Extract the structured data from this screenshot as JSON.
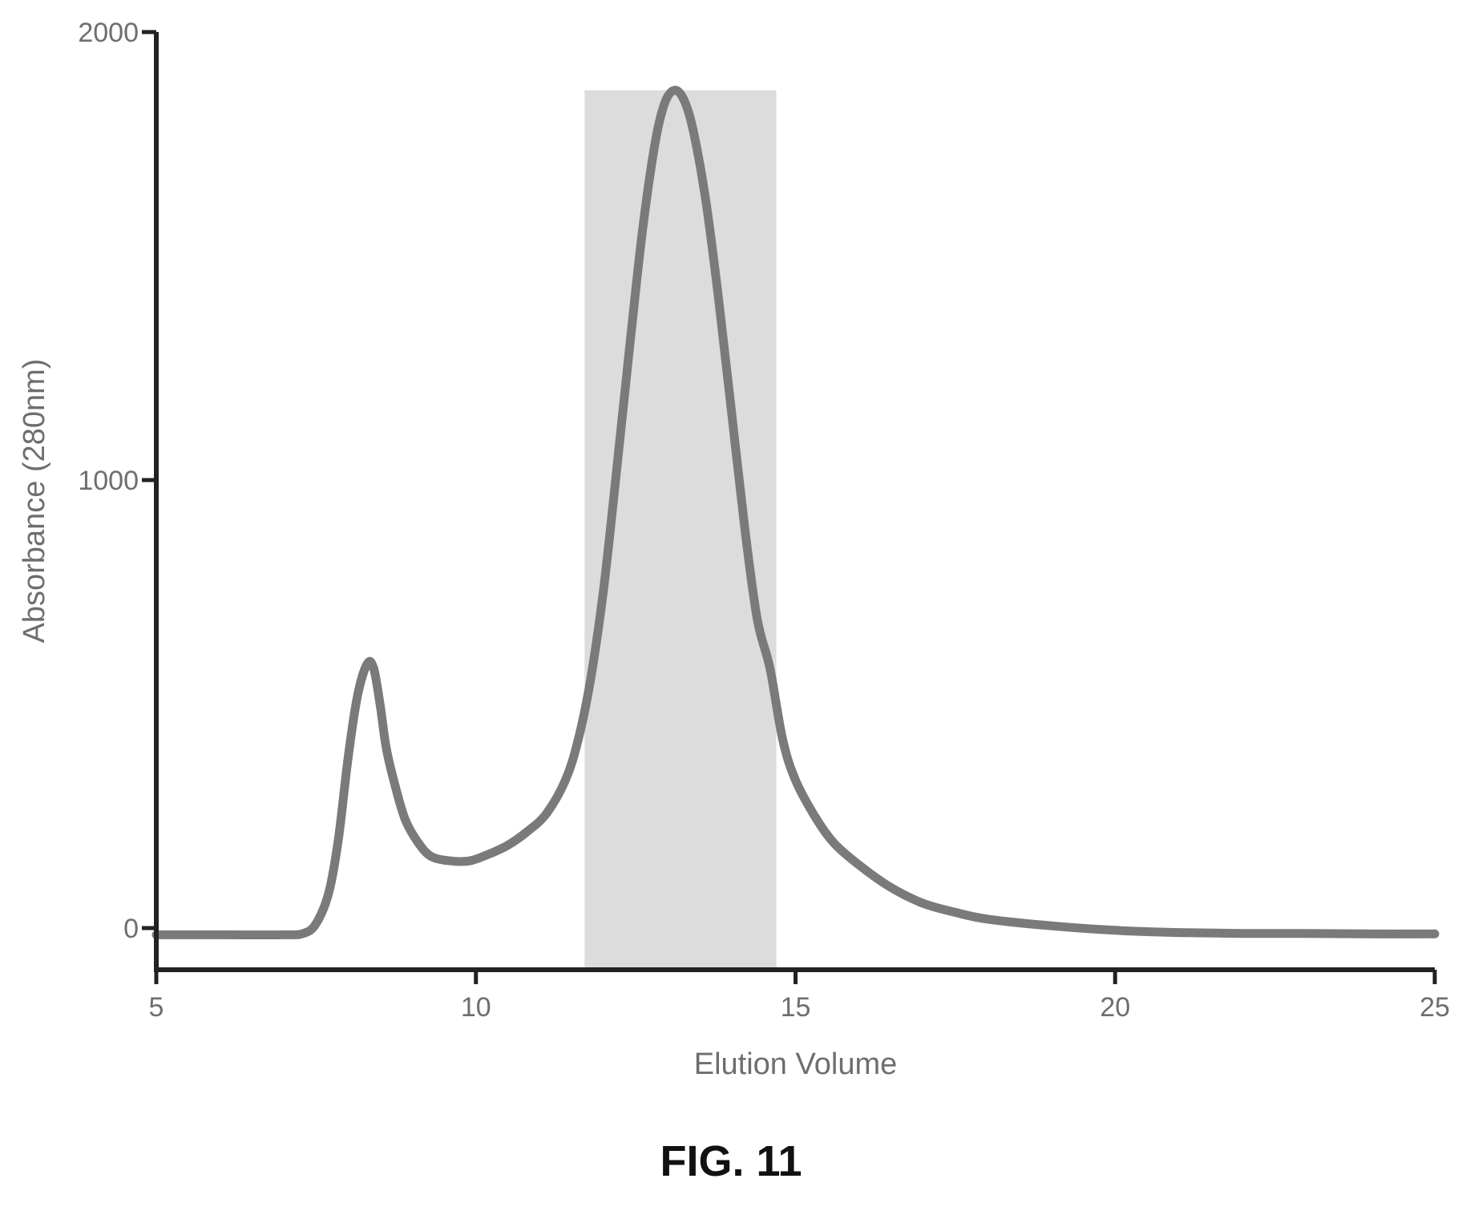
{
  "figure_label": "FIG. 11",
  "colors": {
    "axis": "#222222",
    "trace": "#7a7a7a",
    "shade": "#dcdcdc",
    "text": "#6e6e6e"
  },
  "chart_data": {
    "type": "line",
    "title": "",
    "xlabel": "Elution Volume",
    "ylabel": "Absorbance (280nm)",
    "xlim": [
      5,
      25
    ],
    "ylim": [
      -100,
      2000
    ],
    "xticks": [
      "5",
      "10",
      "15",
      "20",
      "25"
    ],
    "yticks": [
      "0",
      "1000",
      "2000"
    ],
    "grid": false,
    "legend": "none",
    "shaded_region": {
      "x_start": 11.7,
      "x_end": 14.7,
      "y_top": 1870
    },
    "series": [
      {
        "x": [
          5.0,
          6.0,
          7.0,
          7.3,
          7.5,
          7.7,
          7.85,
          8.0,
          8.15,
          8.3,
          8.4,
          8.5,
          8.6,
          8.75,
          8.9,
          9.1,
          9.3,
          9.6,
          9.9,
          10.2,
          10.5,
          10.8,
          11.1,
          11.4,
          11.6,
          11.8,
          12.0,
          12.2,
          12.4,
          12.6,
          12.8,
          12.95,
          13.1,
          13.25,
          13.4,
          13.6,
          13.8,
          14.0,
          14.2,
          14.4,
          14.6,
          14.8,
          15.0,
          15.3,
          15.6,
          16.0,
          16.5,
          17.0,
          17.5,
          18.0,
          19.0,
          20.0,
          21.0,
          22.0,
          23.0,
          24.0,
          25.0
        ],
        "y": [
          -15,
          -15,
          -15,
          -12,
          10,
          80,
          200,
          380,
          520,
          590,
          580,
          500,
          400,
          310,
          240,
          190,
          160,
          150,
          150,
          165,
          185,
          215,
          255,
          330,
          420,
          560,
          760,
          1020,
          1290,
          1550,
          1750,
          1840,
          1870,
          1850,
          1780,
          1620,
          1400,
          1150,
          900,
          690,
          580,
          420,
          330,
          250,
          190,
          140,
          90,
          55,
          35,
          20,
          5,
          -5,
          -10,
          -12,
          -12,
          -13,
          -13
        ]
      }
    ]
  }
}
